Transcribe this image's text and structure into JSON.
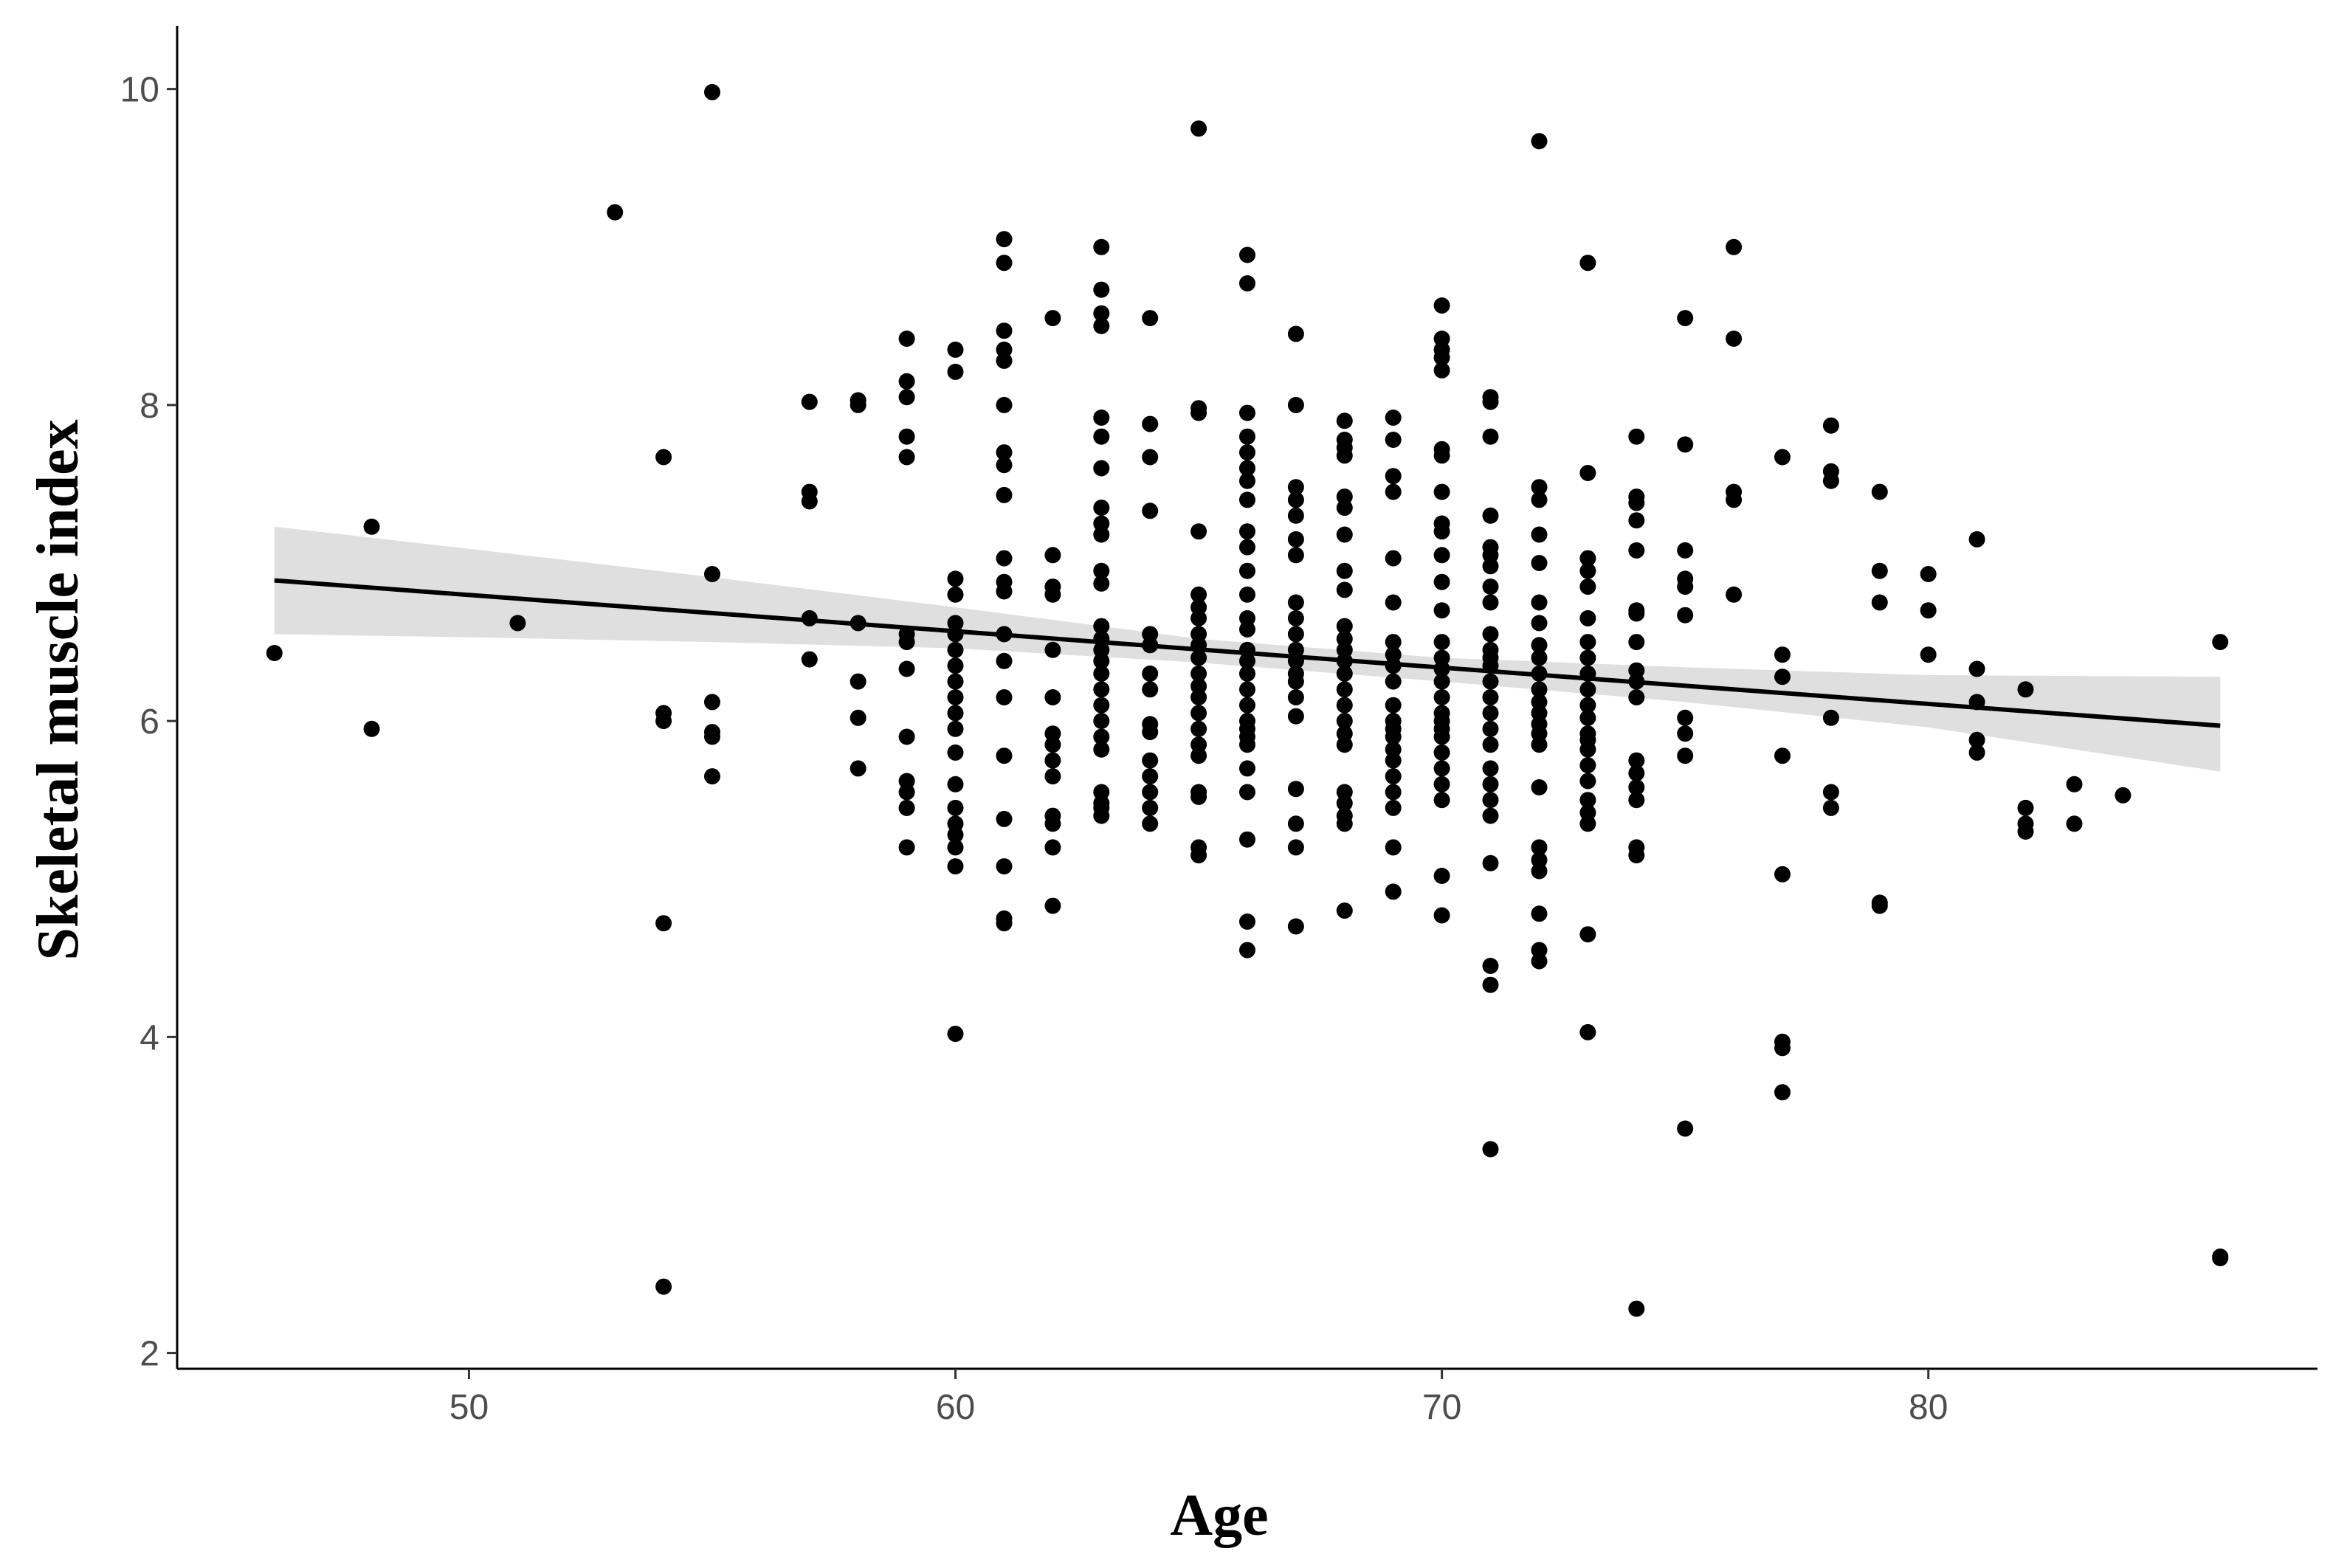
{
  "chart_data": {
    "type": "scatter",
    "title": "",
    "xlabel": "Age",
    "ylabel": "Skeletal muscle index",
    "xlim": [
      44,
      88
    ],
    "ylim": [
      1.9,
      10.4
    ],
    "x_ticks": [
      50,
      60,
      70,
      80
    ],
    "y_ticks": [
      2,
      4,
      6,
      8,
      10
    ],
    "x_tick_labels": [
      "50",
      "60",
      "70",
      "80"
    ],
    "y_tick_labels": [
      "2",
      "4",
      "6",
      "8",
      "10"
    ],
    "grid": false,
    "legend": "none",
    "point_color": "#000000",
    "fit_line_color": "#000000",
    "band_color": "#d9d9d9",
    "fit_line": {
      "x": [
        46,
        86
      ],
      "y": [
        6.89,
        5.97
      ]
    },
    "confidence_band": {
      "x": [
        46,
        50,
        55,
        60,
        65,
        70,
        75,
        80,
        86
      ],
      "lower": [
        6.55,
        6.53,
        6.5,
        6.46,
        6.37,
        6.25,
        6.12,
        5.96,
        5.68
      ],
      "upper": [
        7.23,
        7.09,
        6.91,
        6.72,
        6.52,
        6.4,
        6.34,
        6.29,
        6.28
      ]
    },
    "points": [
      [
        46,
        6.43
      ],
      [
        48,
        7.23
      ],
      [
        48,
        5.95
      ],
      [
        51,
        6.62
      ],
      [
        53,
        9.22
      ],
      [
        54,
        7.67
      ],
      [
        54,
        6.05
      ],
      [
        54,
        6.0
      ],
      [
        54,
        4.72
      ],
      [
        54,
        2.42
      ],
      [
        55,
        9.98
      ],
      [
        55,
        6.93
      ],
      [
        55,
        6.12
      ],
      [
        55,
        5.93
      ],
      [
        55,
        5.9
      ],
      [
        55,
        5.65
      ],
      [
        57,
        8.02
      ],
      [
        57,
        7.45
      ],
      [
        57,
        7.39
      ],
      [
        57,
        6.65
      ],
      [
        57,
        6.39
      ],
      [
        58,
        8.03
      ],
      [
        58,
        8.0
      ],
      [
        58,
        6.62
      ],
      [
        58,
        6.25
      ],
      [
        58,
        6.02
      ],
      [
        58,
        5.7
      ],
      [
        59,
        8.42
      ],
      [
        59,
        8.15
      ],
      [
        59,
        8.05
      ],
      [
        59,
        7.8
      ],
      [
        59,
        7.67
      ],
      [
        59,
        6.55
      ],
      [
        59,
        6.5
      ],
      [
        59,
        6.33
      ],
      [
        59,
        5.9
      ],
      [
        59,
        5.62
      ],
      [
        59,
        5.55
      ],
      [
        59,
        5.45
      ],
      [
        59,
        5.2
      ],
      [
        60,
        8.35
      ],
      [
        60,
        8.21
      ],
      [
        60,
        6.9
      ],
      [
        60,
        6.8
      ],
      [
        60,
        6.62
      ],
      [
        60,
        6.55
      ],
      [
        60,
        6.45
      ],
      [
        60,
        6.35
      ],
      [
        60,
        6.25
      ],
      [
        60,
        6.15
      ],
      [
        60,
        6.05
      ],
      [
        60,
        5.95
      ],
      [
        60,
        5.8
      ],
      [
        60,
        5.6
      ],
      [
        60,
        5.45
      ],
      [
        60,
        5.35
      ],
      [
        60,
        5.28
      ],
      [
        60,
        5.2
      ],
      [
        60,
        5.08
      ],
      [
        60,
        4.02
      ],
      [
        61,
        9.05
      ],
      [
        61,
        8.9
      ],
      [
        61,
        8.47
      ],
      [
        61,
        8.35
      ],
      [
        61,
        8.28
      ],
      [
        61,
        8.0
      ],
      [
        61,
        7.7
      ],
      [
        61,
        7.62
      ],
      [
        61,
        7.43
      ],
      [
        61,
        7.03
      ],
      [
        61,
        6.88
      ],
      [
        61,
        6.82
      ],
      [
        61,
        6.55
      ],
      [
        61,
        6.38
      ],
      [
        61,
        6.15
      ],
      [
        61,
        5.78
      ],
      [
        61,
        5.38
      ],
      [
        61,
        5.08
      ],
      [
        61,
        4.75
      ],
      [
        61,
        4.72
      ],
      [
        62,
        8.55
      ],
      [
        62,
        7.05
      ],
      [
        62,
        6.85
      ],
      [
        62,
        6.8
      ],
      [
        62,
        6.45
      ],
      [
        62,
        6.15
      ],
      [
        62,
        5.92
      ],
      [
        62,
        5.85
      ],
      [
        62,
        5.75
      ],
      [
        62,
        5.65
      ],
      [
        62,
        5.4
      ],
      [
        62,
        5.35
      ],
      [
        62,
        5.2
      ],
      [
        62,
        4.83
      ],
      [
        63,
        9.0
      ],
      [
        63,
        8.73
      ],
      [
        63,
        8.58
      ],
      [
        63,
        8.5
      ],
      [
        63,
        7.92
      ],
      [
        63,
        7.8
      ],
      [
        63,
        7.6
      ],
      [
        63,
        7.35
      ],
      [
        63,
        7.25
      ],
      [
        63,
        7.18
      ],
      [
        63,
        6.95
      ],
      [
        63,
        6.87
      ],
      [
        63,
        6.6
      ],
      [
        63,
        6.52
      ],
      [
        63,
        6.45
      ],
      [
        63,
        6.38
      ],
      [
        63,
        6.3
      ],
      [
        63,
        6.2
      ],
      [
        63,
        6.1
      ],
      [
        63,
        6.0
      ],
      [
        63,
        5.9
      ],
      [
        63,
        5.82
      ],
      [
        63,
        5.55
      ],
      [
        63,
        5.48
      ],
      [
        63,
        5.45
      ],
      [
        63,
        5.4
      ],
      [
        64,
        8.55
      ],
      [
        64,
        7.88
      ],
      [
        64,
        7.67
      ],
      [
        64,
        7.33
      ],
      [
        64,
        6.55
      ],
      [
        64,
        6.48
      ],
      [
        64,
        6.3
      ],
      [
        64,
        6.2
      ],
      [
        64,
        5.98
      ],
      [
        64,
        5.93
      ],
      [
        64,
        5.75
      ],
      [
        64,
        5.65
      ],
      [
        64,
        5.55
      ],
      [
        64,
        5.45
      ],
      [
        64,
        5.35
      ],
      [
        65,
        9.75
      ],
      [
        65,
        7.98
      ],
      [
        65,
        7.95
      ],
      [
        65,
        7.2
      ],
      [
        65,
        6.8
      ],
      [
        65,
        6.72
      ],
      [
        65,
        6.65
      ],
      [
        65,
        6.55
      ],
      [
        65,
        6.48
      ],
      [
        65,
        6.4
      ],
      [
        65,
        6.3
      ],
      [
        65,
        6.22
      ],
      [
        65,
        6.15
      ],
      [
        65,
        6.05
      ],
      [
        65,
        5.95
      ],
      [
        65,
        5.85
      ],
      [
        65,
        5.78
      ],
      [
        65,
        5.55
      ],
      [
        65,
        5.52
      ],
      [
        65,
        5.2
      ],
      [
        65,
        5.15
      ],
      [
        66,
        8.95
      ],
      [
        66,
        8.77
      ],
      [
        66,
        7.95
      ],
      [
        66,
        7.8
      ],
      [
        66,
        7.7
      ],
      [
        66,
        7.6
      ],
      [
        66,
        7.52
      ],
      [
        66,
        7.4
      ],
      [
        66,
        7.2
      ],
      [
        66,
        7.1
      ],
      [
        66,
        6.95
      ],
      [
        66,
        6.8
      ],
      [
        66,
        6.65
      ],
      [
        66,
        6.58
      ],
      [
        66,
        6.45
      ],
      [
        66,
        6.38
      ],
      [
        66,
        6.3
      ],
      [
        66,
        6.2
      ],
      [
        66,
        6.1
      ],
      [
        66,
        6.0
      ],
      [
        66,
        5.95
      ],
      [
        66,
        5.9
      ],
      [
        66,
        5.85
      ],
      [
        66,
        5.7
      ],
      [
        66,
        5.55
      ],
      [
        66,
        5.25
      ],
      [
        66,
        4.73
      ],
      [
        66,
        4.55
      ],
      [
        67,
        8.45
      ],
      [
        67,
        8.0
      ],
      [
        67,
        7.48
      ],
      [
        67,
        7.4
      ],
      [
        67,
        7.3
      ],
      [
        67,
        7.15
      ],
      [
        67,
        7.05
      ],
      [
        67,
        6.75
      ],
      [
        67,
        6.65
      ],
      [
        67,
        6.55
      ],
      [
        67,
        6.45
      ],
      [
        67,
        6.38
      ],
      [
        67,
        6.3
      ],
      [
        67,
        6.25
      ],
      [
        67,
        6.15
      ],
      [
        67,
        6.03
      ],
      [
        67,
        5.57
      ],
      [
        67,
        5.35
      ],
      [
        67,
        5.2
      ],
      [
        67,
        4.7
      ],
      [
        68,
        7.9
      ],
      [
        68,
        7.78
      ],
      [
        68,
        7.73
      ],
      [
        68,
        7.68
      ],
      [
        68,
        7.42
      ],
      [
        68,
        7.35
      ],
      [
        68,
        7.18
      ],
      [
        68,
        6.95
      ],
      [
        68,
        6.83
      ],
      [
        68,
        6.6
      ],
      [
        68,
        6.52
      ],
      [
        68,
        6.45
      ],
      [
        68,
        6.38
      ],
      [
        68,
        6.3
      ],
      [
        68,
        6.2
      ],
      [
        68,
        6.1
      ],
      [
        68,
        6.0
      ],
      [
        68,
        5.92
      ],
      [
        68,
        5.85
      ],
      [
        68,
        5.55
      ],
      [
        68,
        5.48
      ],
      [
        68,
        5.4
      ],
      [
        68,
        5.35
      ],
      [
        68,
        4.8
      ],
      [
        69,
        7.92
      ],
      [
        69,
        7.78
      ],
      [
        69,
        7.55
      ],
      [
        69,
        7.45
      ],
      [
        69,
        7.03
      ],
      [
        69,
        6.75
      ],
      [
        69,
        6.5
      ],
      [
        69,
        6.42
      ],
      [
        69,
        6.35
      ],
      [
        69,
        6.25
      ],
      [
        69,
        6.1
      ],
      [
        69,
        6.0
      ],
      [
        69,
        5.95
      ],
      [
        69,
        5.9
      ],
      [
        69,
        5.82
      ],
      [
        69,
        5.75
      ],
      [
        69,
        5.65
      ],
      [
        69,
        5.55
      ],
      [
        69,
        5.45
      ],
      [
        69,
        5.2
      ],
      [
        69,
        4.92
      ],
      [
        70,
        8.63
      ],
      [
        70,
        8.42
      ],
      [
        70,
        8.35
      ],
      [
        70,
        8.3
      ],
      [
        70,
        8.22
      ],
      [
        70,
        7.72
      ],
      [
        70,
        7.68
      ],
      [
        70,
        7.45
      ],
      [
        70,
        7.25
      ],
      [
        70,
        7.2
      ],
      [
        70,
        7.05
      ],
      [
        70,
        6.88
      ],
      [
        70,
        6.7
      ],
      [
        70,
        6.5
      ],
      [
        70,
        6.4
      ],
      [
        70,
        6.33
      ],
      [
        70,
        6.25
      ],
      [
        70,
        6.15
      ],
      [
        70,
        6.05
      ],
      [
        70,
        6.0
      ],
      [
        70,
        5.95
      ],
      [
        70,
        5.9
      ],
      [
        70,
        5.8
      ],
      [
        70,
        5.7
      ],
      [
        70,
        5.6
      ],
      [
        70,
        5.5
      ],
      [
        70,
        5.02
      ],
      [
        70,
        4.77
      ],
      [
        71,
        8.05
      ],
      [
        71,
        8.02
      ],
      [
        71,
        7.8
      ],
      [
        71,
        7.3
      ],
      [
        71,
        7.1
      ],
      [
        71,
        7.05
      ],
      [
        71,
        6.98
      ],
      [
        71,
        6.85
      ],
      [
        71,
        6.75
      ],
      [
        71,
        6.55
      ],
      [
        71,
        6.45
      ],
      [
        71,
        6.4
      ],
      [
        71,
        6.35
      ],
      [
        71,
        6.25
      ],
      [
        71,
        6.15
      ],
      [
        71,
        6.05
      ],
      [
        71,
        5.95
      ],
      [
        71,
        5.85
      ],
      [
        71,
        5.7
      ],
      [
        71,
        5.6
      ],
      [
        71,
        5.5
      ],
      [
        71,
        5.4
      ],
      [
        71,
        5.1
      ],
      [
        71,
        4.45
      ],
      [
        71,
        4.33
      ],
      [
        71,
        3.29
      ],
      [
        72,
        9.67
      ],
      [
        72,
        7.48
      ],
      [
        72,
        7.4
      ],
      [
        72,
        7.18
      ],
      [
        72,
        7.0
      ],
      [
        72,
        6.75
      ],
      [
        72,
        6.62
      ],
      [
        72,
        6.48
      ],
      [
        72,
        6.4
      ],
      [
        72,
        6.3
      ],
      [
        72,
        6.2
      ],
      [
        72,
        6.12
      ],
      [
        72,
        6.05
      ],
      [
        72,
        5.98
      ],
      [
        72,
        5.92
      ],
      [
        72,
        5.85
      ],
      [
        72,
        5.58
      ],
      [
        72,
        5.2
      ],
      [
        72,
        5.12
      ],
      [
        72,
        5.05
      ],
      [
        72,
        4.78
      ],
      [
        72,
        4.55
      ],
      [
        72,
        4.48
      ],
      [
        73,
        8.9
      ],
      [
        73,
        7.57
      ],
      [
        73,
        7.03
      ],
      [
        73,
        6.95
      ],
      [
        73,
        6.85
      ],
      [
        73,
        6.65
      ],
      [
        73,
        6.5
      ],
      [
        73,
        6.4
      ],
      [
        73,
        6.3
      ],
      [
        73,
        6.2
      ],
      [
        73,
        6.1
      ],
      [
        73,
        6.02
      ],
      [
        73,
        5.92
      ],
      [
        73,
        5.88
      ],
      [
        73,
        5.82
      ],
      [
        73,
        5.72
      ],
      [
        73,
        5.62
      ],
      [
        73,
        5.5
      ],
      [
        73,
        5.42
      ],
      [
        73,
        5.35
      ],
      [
        73,
        4.65
      ],
      [
        73,
        4.03
      ],
      [
        74,
        7.8
      ],
      [
        74,
        7.42
      ],
      [
        74,
        7.38
      ],
      [
        74,
        7.27
      ],
      [
        74,
        7.08
      ],
      [
        74,
        6.7
      ],
      [
        74,
        6.68
      ],
      [
        74,
        6.5
      ],
      [
        74,
        6.32
      ],
      [
        74,
        6.25
      ],
      [
        74,
        6.15
      ],
      [
        74,
        5.75
      ],
      [
        74,
        5.67
      ],
      [
        74,
        5.58
      ],
      [
        74,
        5.5
      ],
      [
        74,
        5.2
      ],
      [
        74,
        5.15
      ],
      [
        74,
        2.28
      ],
      [
        75,
        8.55
      ],
      [
        75,
        7.75
      ],
      [
        75,
        7.08
      ],
      [
        75,
        6.9
      ],
      [
        75,
        6.85
      ],
      [
        75,
        6.67
      ],
      [
        75,
        6.02
      ],
      [
        75,
        5.92
      ],
      [
        75,
        5.78
      ],
      [
        75,
        3.42
      ],
      [
        76,
        9.0
      ],
      [
        76,
        8.42
      ],
      [
        76,
        7.45
      ],
      [
        76,
        7.4
      ],
      [
        76,
        6.8
      ],
      [
        77,
        7.67
      ],
      [
        77,
        6.42
      ],
      [
        77,
        6.28
      ],
      [
        77,
        5.78
      ],
      [
        77,
        5.03
      ],
      [
        77,
        3.97
      ],
      [
        77,
        3.93
      ],
      [
        77,
        3.65
      ],
      [
        78,
        7.87
      ],
      [
        78,
        7.58
      ],
      [
        78,
        7.52
      ],
      [
        78,
        6.02
      ],
      [
        78,
        5.55
      ],
      [
        78,
        5.45
      ],
      [
        79,
        7.45
      ],
      [
        79,
        6.95
      ],
      [
        79,
        6.75
      ],
      [
        79,
        4.85
      ],
      [
        79,
        4.83
      ],
      [
        80,
        6.93
      ],
      [
        80,
        6.7
      ],
      [
        80,
        6.42
      ],
      [
        81,
        7.15
      ],
      [
        81,
        6.33
      ],
      [
        81,
        6.12
      ],
      [
        81,
        5.88
      ],
      [
        81,
        5.8
      ],
      [
        82,
        6.2
      ],
      [
        82,
        5.45
      ],
      [
        82,
        5.35
      ],
      [
        82,
        5.3
      ],
      [
        83,
        5.6
      ],
      [
        83,
        5.35
      ],
      [
        84,
        5.53
      ],
      [
        86,
        6.5
      ],
      [
        86,
        2.61
      ],
      [
        86,
        2.6
      ]
    ]
  }
}
